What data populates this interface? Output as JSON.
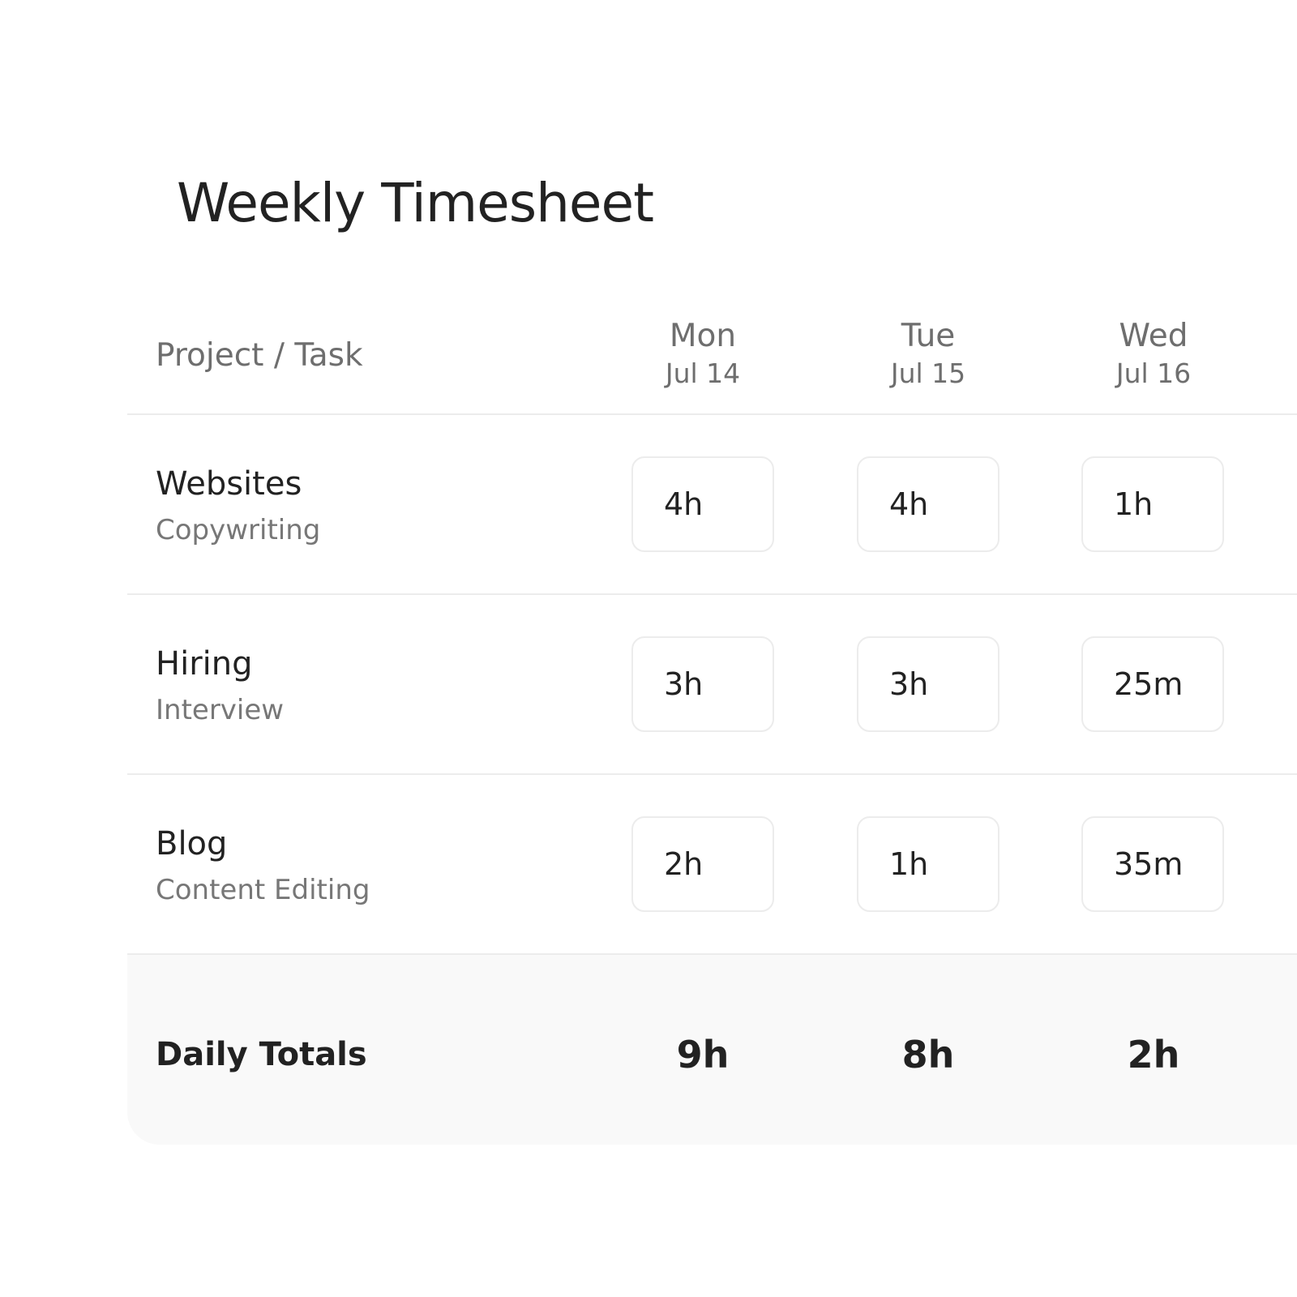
{
  "title": "Weekly Timesheet",
  "header": {
    "project_task": "Project / Task",
    "days": [
      {
        "day": "Mon",
        "date": "Jul 14"
      },
      {
        "day": "Tue",
        "date": "Jul 15"
      },
      {
        "day": "Wed",
        "date": "Jul 16"
      }
    ]
  },
  "rows": [
    {
      "project": "Websites",
      "task": "Copywriting",
      "hours": [
        "4h",
        "4h",
        "1h"
      ]
    },
    {
      "project": "Hiring",
      "task": "Interview",
      "hours": [
        "3h",
        "3h",
        "25m"
      ]
    },
    {
      "project": "Blog",
      "task": "Content Editing",
      "hours": [
        "2h",
        "1h",
        "35m"
      ]
    }
  ],
  "totals": {
    "label": "Daily Totals",
    "values": [
      "9h",
      "8h",
      "2h"
    ]
  }
}
